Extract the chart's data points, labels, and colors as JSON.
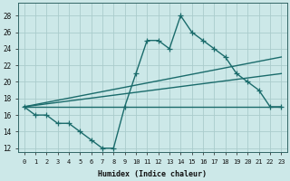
{
  "xlabel": "Humidex (Indice chaleur)",
  "xlim": [
    -0.5,
    23.5
  ],
  "ylim": [
    11.5,
    29.5
  ],
  "yticks": [
    12,
    14,
    16,
    18,
    20,
    22,
    24,
    26,
    28
  ],
  "xticks": [
    0,
    1,
    2,
    3,
    4,
    5,
    6,
    7,
    8,
    9,
    10,
    11,
    12,
    13,
    14,
    15,
    16,
    17,
    18,
    19,
    20,
    21,
    22,
    23
  ],
  "bg_color": "#cce8e8",
  "grid_color": "#aacccc",
  "line_color": "#1a6b6b",
  "line_width": 1.0,
  "marker": "+",
  "marker_size": 4,
  "jagged": {
    "x": [
      0,
      1,
      2,
      3,
      4,
      5,
      6,
      7,
      8,
      9,
      10,
      11,
      12,
      13,
      14,
      15,
      16,
      17,
      18,
      19,
      20,
      21,
      22,
      23
    ],
    "y": [
      17,
      16,
      16,
      15,
      15,
      14,
      13,
      12,
      12,
      17,
      21,
      25,
      25,
      24,
      28,
      26,
      25,
      24,
      23,
      21,
      20,
      19,
      17,
      17
    ]
  },
  "straight_lines": [
    {
      "x": [
        0,
        23
      ],
      "y": [
        17,
        17
      ]
    },
    {
      "x": [
        0,
        23
      ],
      "y": [
        17,
        21
      ]
    },
    {
      "x": [
        0,
        23
      ],
      "y": [
        17,
        23
      ]
    }
  ]
}
